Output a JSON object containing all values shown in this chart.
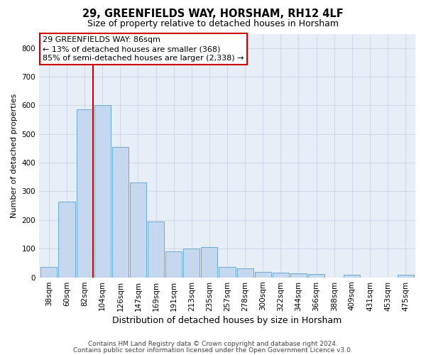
{
  "title1": "29, GREENFIELDS WAY, HORSHAM, RH12 4LF",
  "title2": "Size of property relative to detached houses in Horsham",
  "xlabel": "Distribution of detached houses by size in Horsham",
  "ylabel": "Number of detached properties",
  "footer1": "Contains HM Land Registry data © Crown copyright and database right 2024.",
  "footer2": "Contains public sector information licensed under the Open Government Licence v3.0.",
  "annotation_line1": "29 GREENFIELDS WAY: 86sqm",
  "annotation_line2": "← 13% of detached houses are smaller (368)",
  "annotation_line3": "85% of semi-detached houses are larger (2,338) →",
  "bar_color": "#c5d8ef",
  "bar_edge_color": "#6aaad4",
  "grid_color": "#c8d4e6",
  "background_color": "#e8eef6",
  "vline_color": "#cc0000",
  "categories": [
    "38sqm",
    "60sqm",
    "82sqm",
    "104sqm",
    "126sqm",
    "147sqm",
    "169sqm",
    "191sqm",
    "213sqm",
    "235sqm",
    "257sqm",
    "278sqm",
    "300sqm",
    "322sqm",
    "344sqm",
    "366sqm",
    "388sqm",
    "409sqm",
    "431sqm",
    "453sqm",
    "475sqm"
  ],
  "values": [
    35,
    265,
    585,
    600,
    455,
    330,
    195,
    90,
    100,
    105,
    35,
    32,
    18,
    17,
    14,
    11,
    0,
    8,
    0,
    0,
    8
  ],
  "ylim": [
    0,
    850
  ],
  "yticks": [
    0,
    100,
    200,
    300,
    400,
    500,
    600,
    700,
    800
  ],
  "vline_x": 2.48,
  "title1_fontsize": 10.5,
  "title2_fontsize": 9,
  "ylabel_fontsize": 8,
  "xlabel_fontsize": 9,
  "tick_fontsize": 7.5,
  "ann_fontsize": 8
}
